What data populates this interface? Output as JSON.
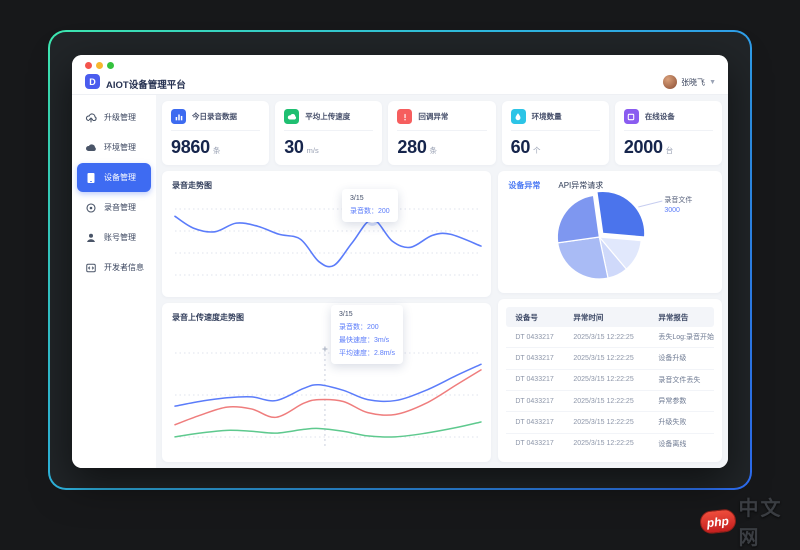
{
  "window": {
    "logo_letter": "D",
    "app_title": "AIOT设备管理平台",
    "user_name": "张晓飞"
  },
  "sidebar": {
    "items": [
      {
        "key": "upgrade",
        "label": "升级管理",
        "icon": "upload-cloud",
        "active": false
      },
      {
        "key": "environment",
        "label": "环境管理",
        "icon": "cloud",
        "active": false
      },
      {
        "key": "device",
        "label": "设备管理",
        "icon": "device",
        "active": true
      },
      {
        "key": "recording",
        "label": "录音管理",
        "icon": "record",
        "active": false
      },
      {
        "key": "account",
        "label": "账号管理",
        "icon": "user",
        "active": false
      },
      {
        "key": "developer",
        "label": "开发者信息",
        "icon": "code",
        "active": false
      }
    ]
  },
  "stats": [
    {
      "key": "today-recordings",
      "label": "今日录音数据",
      "value": "9860",
      "unit": "条",
      "icon": "bar-chart",
      "color": "#3d6bf0"
    },
    {
      "key": "avg-upload-speed",
      "label": "平均上传速度",
      "value": "30",
      "unit": "m/s",
      "icon": "cloud-solid",
      "color": "#1fbf71"
    },
    {
      "key": "callback-errors",
      "label": "回调异常",
      "value": "280",
      "unit": "条",
      "icon": "alert",
      "color": "#f65e5e"
    },
    {
      "key": "environments",
      "label": "环境数量",
      "value": "60",
      "unit": "个",
      "icon": "drop",
      "color": "#2cc4e6"
    },
    {
      "key": "online-devices",
      "label": "在线设备",
      "value": "2000",
      "unit": "台",
      "icon": "square",
      "color": "#8a5cf0"
    }
  ],
  "panels": {
    "trend": {
      "title": "录音走势图",
      "tooltip": {
        "date": "3/15",
        "rows": [
          {
            "label": "录音数：",
            "value": "200"
          }
        ]
      }
    },
    "speed": {
      "title": "录音上传速度走势图",
      "tooltip": {
        "date": "3/15",
        "rows": [
          {
            "label": "录音数：",
            "value": "200"
          },
          {
            "label": "最快速度：",
            "value": "3m/s"
          },
          {
            "label": "平均速度：",
            "value": "2.8m/s"
          }
        ]
      }
    },
    "device": {
      "tabs": [
        {
          "label": "设备异常",
          "active": true
        },
        {
          "label": "API异常请求",
          "active": false
        }
      ],
      "pie_callout": {
        "label": "录音文件",
        "value": "3000"
      }
    }
  },
  "chart_data": [
    {
      "id": "recording-trend",
      "type": "line",
      "title": "录音走势图",
      "grid": "dotted-horizontal",
      "axes_visible": false,
      "ylim": [
        100,
        240
      ],
      "x": [
        0,
        0.06,
        0.13,
        0.2,
        0.27,
        0.34,
        0.41,
        0.47,
        0.52,
        0.58,
        0.645,
        0.71,
        0.77,
        0.84,
        0.9,
        1.0
      ],
      "series": [
        {
          "name": "录音数",
          "color": "#5b7cfa",
          "values": [
            205,
            186,
            180,
            194,
            189,
            176,
            168,
            132,
            126,
            163,
            200,
            165,
            155,
            174,
            176,
            157
          ]
        }
      ],
      "marked_point": {
        "index": 10,
        "date": "3/15",
        "label": "录音数",
        "value": 200
      }
    },
    {
      "id": "upload-speed-trend",
      "type": "line",
      "title": "录音上传速度走势图",
      "grid": "dotted-horizontal",
      "axes_visible": false,
      "ylim": [
        0,
        100
      ],
      "cursor_x": 0.49,
      "x": [
        0,
        0.08,
        0.17,
        0.25,
        0.33,
        0.42,
        0.47,
        0.55,
        0.63,
        0.72,
        0.82,
        0.92,
        1.0
      ],
      "series": [
        {
          "name": "录音数",
          "color": "#5b7cfa",
          "values": [
            45,
            50,
            54,
            55,
            51,
            64,
            68,
            62,
            52,
            51,
            62,
            78,
            90
          ]
        },
        {
          "name": "最快速度",
          "color": "#ef7d7d",
          "values": [
            25,
            35,
            44,
            42,
            33,
            48,
            52,
            50,
            38,
            36,
            48,
            68,
            84
          ]
        },
        {
          "name": "平均速度",
          "color": "#5ec98e",
          "values": [
            12,
            16,
            19,
            18,
            16,
            20,
            21,
            18,
            13,
            12,
            16,
            22,
            28
          ]
        }
      ],
      "tooltip": {
        "date": "3/15",
        "rows": [
          "录音数：200",
          "最快速度：3m/s",
          "平均速度：2.8m/s"
        ]
      }
    },
    {
      "id": "device-abnormal-pie",
      "type": "pie",
      "start_angle_deg": -8,
      "slices": [
        {
          "label": "录音文件",
          "value": 3000,
          "pct": 28.6,
          "color": "#4b74ec",
          "exploded": true
        },
        {
          "pct": 12.5,
          "color": "#e1e8fc"
        },
        {
          "pct": 7.8,
          "color": "#cfd9fa"
        },
        {
          "pct": 26.1,
          "color": "#a9bbf5"
        },
        {
          "pct": 25.0,
          "color": "#7e97f0"
        }
      ]
    }
  ],
  "table": {
    "columns": [
      "设备号",
      "异常时间",
      "异常报告"
    ],
    "rows": [
      [
        "DT 0433217",
        "2025/3/15 12:22:25",
        "丢失Log:录音开始"
      ],
      [
        "DT 0433217",
        "2025/3/15 12:22:25",
        "设备升级"
      ],
      [
        "DT 0433217",
        "2025/3/15 12:22:25",
        "录音文件丢失"
      ],
      [
        "DT 0433217",
        "2025/3/15 12:22:25",
        "异常参数"
      ],
      [
        "DT 0433217",
        "2025/3/15 12:22:25",
        "升级失败"
      ],
      [
        "DT 0433217",
        "2025/3/15 12:22:25",
        "设备离线"
      ]
    ]
  },
  "watermark": {
    "logo_text": "php",
    "site_text": "中文网"
  }
}
